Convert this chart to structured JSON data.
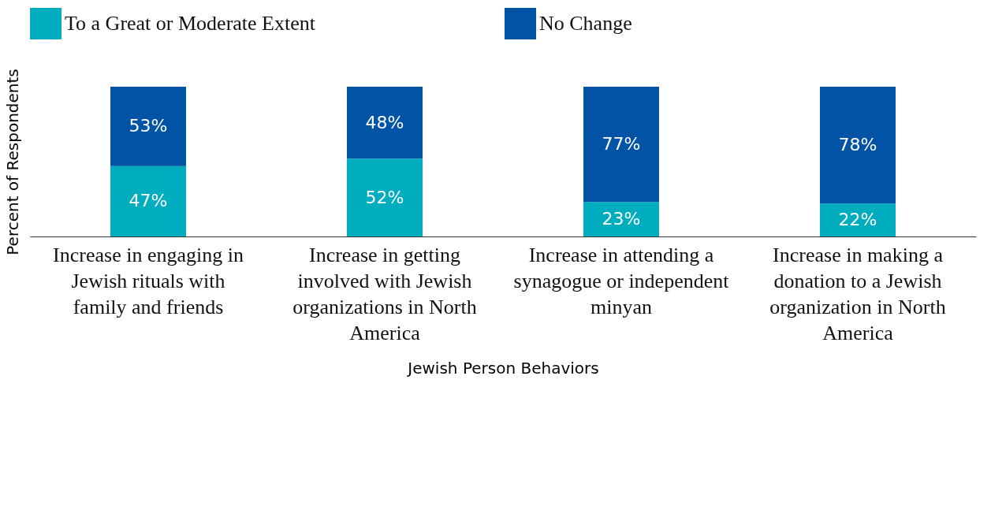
{
  "chart_data": {
    "type": "bar",
    "stacked": true,
    "xlabel": "Jewish Person Behaviors",
    "ylabel": "Percent of Respondents",
    "tick_labels": "x",
    "legend": "top",
    "grid": false,
    "categories": [
      "Increase in engaging in Jewish rituals with family and friends",
      "Increase in getting involved with Jewish organizations in North America",
      "Increase in attending a synagogue or independent minyan",
      "Increase in making a donation to a Jewish organization in North America"
    ],
    "series": [
      {
        "name": "To a Great or Moderate Extent",
        "color": "#00adbf",
        "values": [
          47,
          52,
          23,
          22
        ],
        "value_labels": [
          "47%",
          "52%",
          "23%",
          "22%"
        ]
      },
      {
        "name": "No Change",
        "color": "#0053a5",
        "values": [
          53,
          48,
          77,
          78
        ],
        "value_labels": [
          "53%",
          "48%",
          "77%",
          "78%"
        ]
      }
    ]
  }
}
